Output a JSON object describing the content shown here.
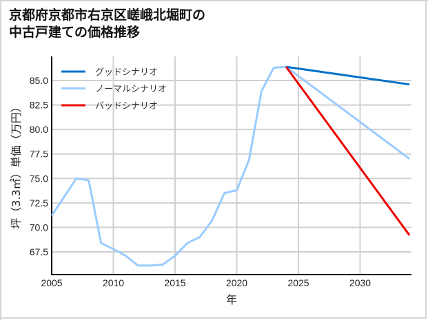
{
  "title": "京都府京都市右京区嵯峨北堀町の\n中古戸建ての価格推移",
  "chart_data": {
    "type": "line",
    "title": "京都府京都市右京区嵯峨北堀町の中古戸建ての価格推移",
    "xlabel": "年",
    "ylabel": "坪（3.3㎡）単価（万円）",
    "xlim": [
      2005,
      2034
    ],
    "ylim": [
      65.2,
      87.2
    ],
    "xticks": [
      2005,
      2010,
      2015,
      2020,
      2025,
      2030
    ],
    "yticks": [
      67.5,
      70.0,
      72.5,
      75.0,
      77.5,
      80.0,
      82.5,
      85.0
    ],
    "grid": true,
    "legend_position": "upper left",
    "series": [
      {
        "name": "グッドシナリオ",
        "color": "#0070c8",
        "x": [
          2024,
          2034
        ],
        "values": [
          86.4,
          84.6
        ]
      },
      {
        "name": "ノーマルシナリオ",
        "color": "#99ccff",
        "x": [
          2005,
          2006,
          2007,
          2008,
          2009,
          2010,
          2011,
          2012,
          2013,
          2014,
          2015,
          2016,
          2017,
          2018,
          2019,
          2020,
          2021,
          2022,
          2023,
          2024,
          2034
        ],
        "values": [
          71.2,
          73.1,
          75.0,
          74.8,
          68.4,
          67.8,
          67.1,
          66.1,
          66.1,
          66.2,
          67.1,
          68.4,
          69.0,
          70.7,
          73.5,
          73.8,
          76.9,
          83.9,
          86.3,
          86.4,
          77.0
        ]
      },
      {
        "name": "バッドシナリオ",
        "color": "#ee0000",
        "x": [
          2024,
          2034
        ],
        "values": [
          86.4,
          69.2
        ]
      }
    ]
  }
}
